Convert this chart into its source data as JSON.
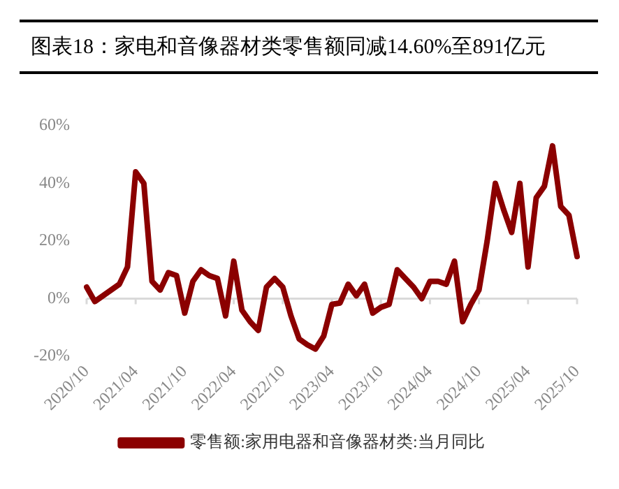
{
  "chart_data": {
    "type": "line",
    "title": "图表18：家电和音像器材类零售额同减14.60%至891亿元",
    "categories": [
      "2020/10",
      null,
      null,
      null,
      null,
      null,
      "2021/04",
      null,
      null,
      null,
      null,
      null,
      "2021/10",
      null,
      null,
      null,
      null,
      null,
      "2022/04",
      null,
      null,
      null,
      null,
      null,
      "2022/10",
      null,
      null,
      null,
      null,
      null,
      "2023/04",
      null,
      null,
      null,
      null,
      null,
      "2023/10",
      null,
      null,
      null,
      null,
      null,
      "2024/04",
      null,
      null,
      null,
      null,
      null,
      "2024/10",
      null,
      null,
      null,
      null,
      null,
      "2025/04",
      null,
      null,
      null,
      null,
      null,
      "2025/10"
    ],
    "series": [
      {
        "name": "零售额:家用电器和音像器材类:当月同比",
        "color": "#8b0000",
        "values": [
          4,
          -1,
          1,
          3,
          5,
          11,
          44,
          40,
          6,
          3,
          9,
          8,
          -5,
          6,
          10,
          8,
          7,
          -6,
          13,
          -4,
          -8,
          -11,
          4,
          7,
          4,
          -6,
          -14,
          -16,
          -17.5,
          -13,
          -2,
          -1.5,
          5,
          1,
          5,
          -5,
          -3,
          -2,
          10,
          7,
          4,
          0,
          6,
          6,
          5,
          13,
          -8,
          -2,
          3,
          20,
          40,
          31,
          23,
          40,
          11,
          35,
          39,
          53,
          32,
          29,
          14.6
        ]
      }
    ],
    "ylim": [
      -20,
      60
    ],
    "yticks": [
      {
        "value": -20,
        "label": "-20%"
      },
      {
        "value": 0,
        "label": "0%"
      },
      {
        "value": 20,
        "label": "20%"
      },
      {
        "value": 40,
        "label": "40%"
      },
      {
        "value": 60,
        "label": "60%"
      }
    ],
    "ref_lines": [
      {
        "axis": "y",
        "value": 0,
        "color": "#d9d9d9"
      }
    ],
    "grid": false,
    "legend": "bottom",
    "marker": "none",
    "line_style": "solid"
  }
}
